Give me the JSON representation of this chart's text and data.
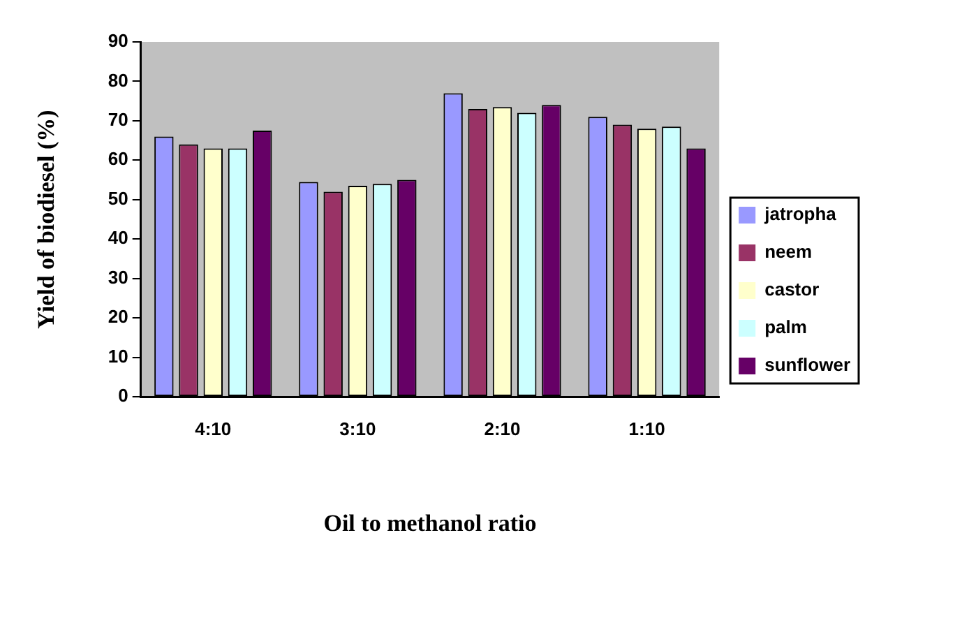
{
  "chart_data": {
    "type": "bar",
    "xlabel": "Oil to methanol ratio",
    "ylabel": "Yield of biodiesel (%)",
    "categories": [
      "4:10",
      "3:10",
      "2:10",
      "1:10"
    ],
    "series": [
      {
        "name": "jatropha",
        "color": "#9999ff",
        "values": [
          66,
          54.5,
          77,
          71
        ]
      },
      {
        "name": "neem",
        "color": "#993366",
        "values": [
          64,
          52,
          73,
          69
        ]
      },
      {
        "name": "castor",
        "color": "#ffffcc",
        "values": [
          63,
          53.5,
          73.5,
          68
        ]
      },
      {
        "name": "palm",
        "color": "#ccffff",
        "values": [
          63,
          54,
          72,
          68.5
        ]
      },
      {
        "name": "sunflower",
        "color": "#660066",
        "values": [
          67.5,
          55,
          74,
          63
        ]
      }
    ],
    "ylim": [
      0,
      90
    ],
    "yticks": [
      0,
      10,
      20,
      30,
      40,
      50,
      60,
      70,
      80,
      90
    ],
    "grid": false,
    "legend": "right"
  }
}
